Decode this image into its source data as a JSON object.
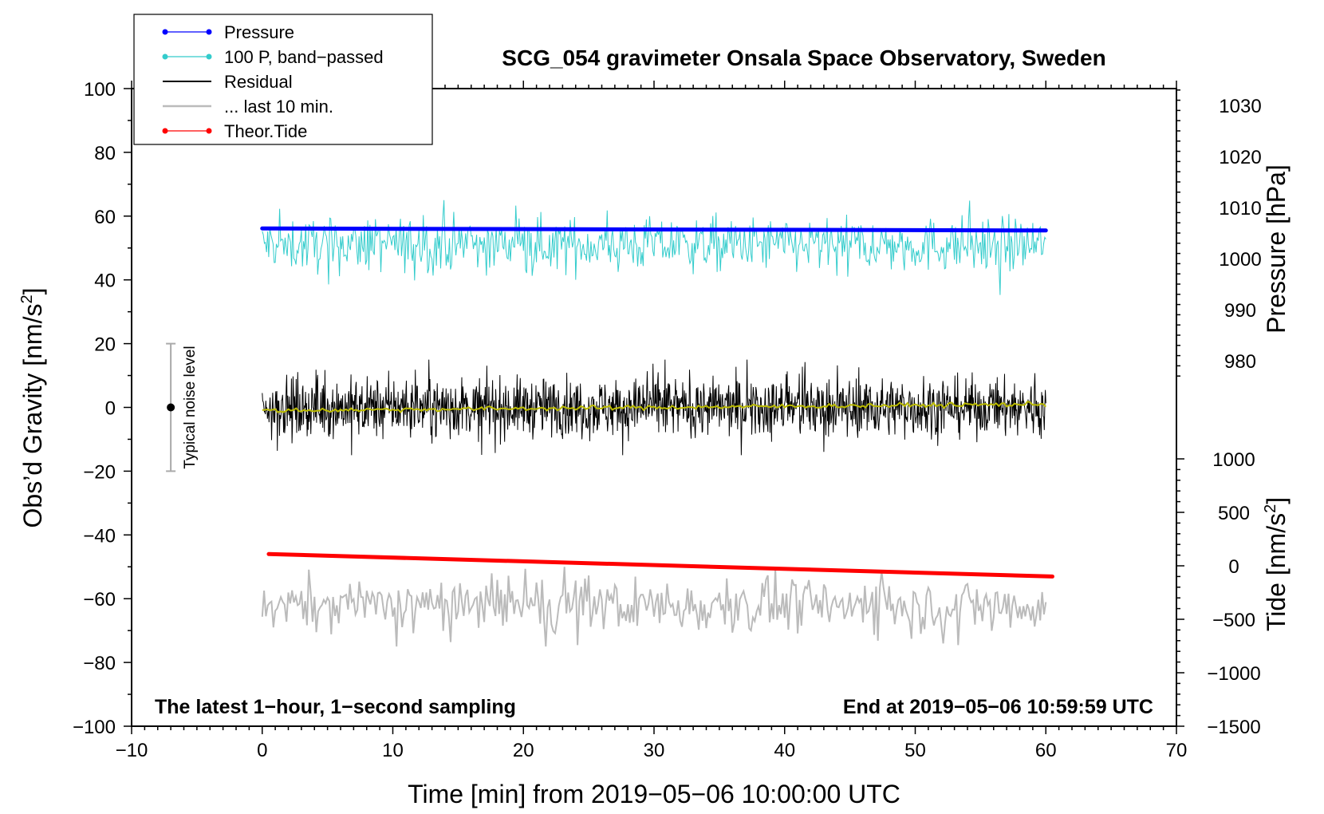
{
  "chart_data": {
    "type": "line",
    "title": "SCG_054 gravimeter Onsala Space Observatory, Sweden",
    "xlabel": "Time [min] from 2019−05−06 10:00:00 UTC",
    "ylabel_left": "Obs’d Gravity [nm/s",
    "ylabel_left_sup": "2",
    "ylabel_left_end": "]",
    "ylabel_right_pressure": "Pressure [hPa]",
    "ylabel_right_tide": "Tide [nm/s",
    "ylabel_right_tide_sup": "2",
    "ylabel_right_tide_end": "]",
    "xlim": [
      -10,
      70
    ],
    "ylim_left": [
      -100,
      100
    ],
    "pressure_range": [
      975,
      1035
    ],
    "tide_range": [
      -1500,
      1500
    ],
    "x_ticks": [
      {
        "value": -10,
        "label": "−10"
      },
      {
        "value": 0,
        "label": "0"
      },
      {
        "value": 10,
        "label": "10"
      },
      {
        "value": 20,
        "label": "20"
      },
      {
        "value": 30,
        "label": "30"
      },
      {
        "value": 40,
        "label": "40"
      },
      {
        "value": 50,
        "label": "50"
      },
      {
        "value": 60,
        "label": "60"
      },
      {
        "value": 70,
        "label": "70"
      }
    ],
    "y_left_ticks": [
      {
        "value": 100,
        "label": "100"
      },
      {
        "value": 80,
        "label": "80"
      },
      {
        "value": 60,
        "label": "60"
      },
      {
        "value": 40,
        "label": "40"
      },
      {
        "value": 20,
        "label": "20"
      },
      {
        "value": 0,
        "label": "0"
      },
      {
        "value": -20,
        "label": "−20"
      },
      {
        "value": -40,
        "label": "−40"
      },
      {
        "value": -60,
        "label": "−60"
      },
      {
        "value": -80,
        "label": "−80"
      },
      {
        "value": -100,
        "label": "−100"
      }
    ],
    "pressure_ticks": [
      {
        "value": 1030,
        "label": "1030"
      },
      {
        "value": 1020,
        "label": "1020"
      },
      {
        "value": 1010,
        "label": "1010"
      },
      {
        "value": 1000,
        "label": "1000"
      },
      {
        "value": 990,
        "label": "990"
      },
      {
        "value": 980,
        "label": "980"
      }
    ],
    "tide_ticks": [
      {
        "value": 1000,
        "label": "1000"
      },
      {
        "value": 500,
        "label": "500"
      },
      {
        "value": 0,
        "label": "0"
      },
      {
        "value": -500,
        "label": "−500"
      },
      {
        "value": -1000,
        "label": "−1000"
      },
      {
        "value": -1500,
        "label": "−1500"
      }
    ],
    "series": [
      {
        "name": "Pressure",
        "axis": "pressure",
        "color": "#0000ff",
        "x_start": 0,
        "x_end": 60,
        "start_value": 1005.9,
        "end_value": 1005.5,
        "style": "line-with-dots"
      },
      {
        "name": "100 P, band−passed",
        "axis": "gravity",
        "color": "#33cccc",
        "x_start": 0,
        "x_end": 60,
        "mean": 51,
        "min": 29,
        "max": 65,
        "style": "noisy"
      },
      {
        "name": "Residual",
        "axis": "gravity",
        "color": "#000000",
        "x_start": 0,
        "x_end": 60,
        "mean": 0,
        "min": -15,
        "max": 15,
        "style": "noisy"
      },
      {
        "name": "... last 10 min.",
        "axis": "gravity",
        "color": "#bbbbbb",
        "x_start": 0,
        "x_end": 60,
        "mean": -62,
        "min": -75,
        "max": -50,
        "style": "noisy"
      },
      {
        "name": "Theor.Tide",
        "axis": "tide",
        "color": "#ff0000",
        "x_start": 0.5,
        "x_end": 60.5,
        "start_value": 110,
        "end_value": -100,
        "style": "line-with-dots"
      },
      {
        "name": "Residual running mean",
        "axis": "gravity",
        "color": "#bbbb00",
        "x_start": 0,
        "x_end": 60,
        "start_value": -1,
        "end_value": 1,
        "style": "smooth"
      }
    ],
    "noise_level": {
      "label": "Typical noise level",
      "x": -7,
      "center": 0,
      "half_range": 20
    },
    "corner_left": "The latest 1−hour, 1−second sampling",
    "corner_right": "End at 2019−05−06 10:59:59 UTC",
    "legend": [
      {
        "label": "Pressure",
        "color": "#0000ff",
        "marker": true,
        "width": 1.2
      },
      {
        "label": "100 P, band−passed",
        "color": "#33cccc",
        "marker": true,
        "width": 1.2
      },
      {
        "label": "Residual",
        "color": "#000000",
        "marker": false,
        "width": 2
      },
      {
        "label": "... last 10 min.",
        "color": "#bbbbbb",
        "marker": false,
        "width": 2.5
      },
      {
        "label": "Theor.Tide",
        "color": "#ff0000",
        "marker": true,
        "width": 1.2
      }
    ]
  }
}
